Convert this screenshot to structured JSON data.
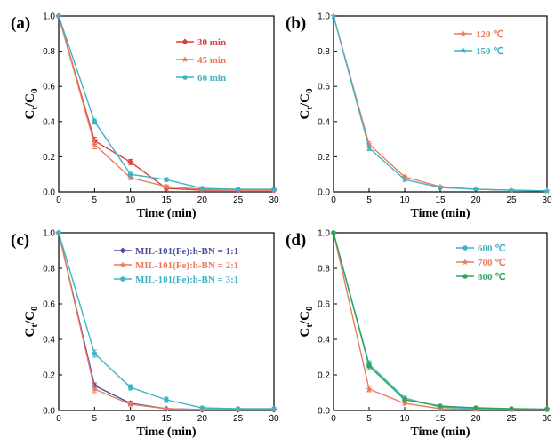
{
  "chart_data": [
    {
      "type": "line",
      "panel": "(a)",
      "xlabel": "Time (min)",
      "ylabel": "Ct/C0",
      "xlim": [
        0,
        30
      ],
      "ylim": [
        0,
        1.0
      ],
      "x": [
        0,
        5,
        10,
        15,
        20,
        25,
        30
      ],
      "xticks": [
        "0",
        "5",
        "10",
        "15",
        "20",
        "25",
        "30"
      ],
      "yticks": [
        "0.0",
        "0.2",
        "0.4",
        "0.6",
        "0.8",
        "1.0"
      ],
      "legend_position": "top-right",
      "series": [
        {
          "name": "30 min",
          "color": "#d9413a",
          "marker": "diamond",
          "values": [
            1.0,
            0.29,
            0.17,
            0.02,
            0.01,
            0.01,
            0.01
          ],
          "errors": [
            0,
            0.02,
            0.015,
            0.01,
            0.005,
            0.005,
            0.005
          ]
        },
        {
          "name": "45 min",
          "color": "#ec7a5c",
          "marker": "star",
          "values": [
            1.0,
            0.27,
            0.08,
            0.03,
            0.015,
            0.01,
            0.01
          ],
          "errors": [
            0,
            0.025,
            0.01,
            0.01,
            0.005,
            0.005,
            0.005
          ]
        },
        {
          "name": "60 min",
          "color": "#3fb3c4",
          "marker": "circle",
          "values": [
            1.0,
            0.4,
            0.1,
            0.07,
            0.02,
            0.015,
            0.015
          ],
          "errors": [
            0,
            0.015,
            0.01,
            0.01,
            0.005,
            0.005,
            0.005
          ]
        }
      ]
    },
    {
      "type": "line",
      "panel": "(b)",
      "xlabel": "Time (min)",
      "ylabel": "Ct/C0",
      "xlim": [
        0,
        30
      ],
      "ylim": [
        0,
        1.0
      ],
      "x": [
        0,
        5,
        10,
        15,
        20,
        25,
        30
      ],
      "xticks": [
        "0",
        "5",
        "10",
        "15",
        "20",
        "25",
        "30"
      ],
      "yticks": [
        "0.0",
        "0.2",
        "0.4",
        "0.6",
        "0.8",
        "1.0"
      ],
      "legend_position": "top-right",
      "series": [
        {
          "name": "120 ℃",
          "color": "#ec7a5c",
          "marker": "star",
          "values": [
            1.0,
            0.27,
            0.085,
            0.03,
            0.015,
            0.01,
            0.005
          ],
          "errors": [
            0,
            0.015,
            0.01,
            0.005,
            0.005,
            0.005,
            0.005
          ]
        },
        {
          "name": "150 ℃",
          "color": "#3fb3c4",
          "marker": "star",
          "values": [
            1.0,
            0.25,
            0.07,
            0.025,
            0.015,
            0.01,
            0.005
          ],
          "errors": [
            0,
            0.015,
            0.01,
            0.005,
            0.005,
            0.005,
            0.005
          ]
        }
      ]
    },
    {
      "type": "line",
      "panel": "(c)",
      "xlabel": "Time (min)",
      "ylabel": "Ct/C0",
      "xlim": [
        0,
        30
      ],
      "ylim": [
        0,
        1.0
      ],
      "x": [
        0,
        5,
        10,
        15,
        20,
        25,
        30
      ],
      "xticks": [
        "0",
        "5",
        "10",
        "15",
        "20",
        "25",
        "30"
      ],
      "yticks": [
        "0.0",
        "0.2",
        "0.4",
        "0.6",
        "0.8",
        "1.0"
      ],
      "legend_position": "top-right",
      "series": [
        {
          "name": "MIL-101(Fe):h-BN = 1:1",
          "color": "#4b4fa0",
          "marker": "diamond",
          "values": [
            1.0,
            0.14,
            0.04,
            0.01,
            0.005,
            0.005,
            0.005
          ],
          "errors": [
            0,
            0.015,
            0.01,
            0.005,
            0.005,
            0.005,
            0.005
          ]
        },
        {
          "name": "MIL-101(Fe):h-BN = 2:1",
          "color": "#ec7a5c",
          "marker": "star",
          "values": [
            1.0,
            0.12,
            0.035,
            0.01,
            0.005,
            0.005,
            0.005
          ],
          "errors": [
            0,
            0.02,
            0.01,
            0.005,
            0.005,
            0.005,
            0.005
          ]
        },
        {
          "name": "MIL-101(Fe):h-BN = 3:1",
          "color": "#3fb3c4",
          "marker": "circle",
          "values": [
            1.0,
            0.32,
            0.13,
            0.06,
            0.015,
            0.01,
            0.01
          ],
          "errors": [
            0,
            0.02,
            0.015,
            0.015,
            0.005,
            0.005,
            0.005
          ]
        }
      ]
    },
    {
      "type": "line",
      "panel": "(d)",
      "xlabel": "Time (min)",
      "ylabel": "Ct/C0",
      "xlim": [
        0,
        30
      ],
      "ylim": [
        0,
        1.0
      ],
      "x": [
        0,
        5,
        10,
        15,
        20,
        25,
        30
      ],
      "xticks": [
        "0",
        "5",
        "10",
        "15",
        "20",
        "25",
        "30"
      ],
      "yticks": [
        "0.0",
        "0.2",
        "0.4",
        "0.6",
        "0.8",
        "1.0"
      ],
      "legend_position": "top-right",
      "series": [
        {
          "name": "600 ℃",
          "color": "#3fb3c4",
          "marker": "circle",
          "values": [
            1.0,
            0.26,
            0.07,
            0.02,
            0.01,
            0.008,
            0.005
          ],
          "errors": [
            0,
            0.02,
            0.01,
            0.005,
            0.005,
            0.005,
            0.005
          ]
        },
        {
          "name": "700 ℃",
          "color": "#ec7a5c",
          "marker": "star",
          "values": [
            1.0,
            0.12,
            0.04,
            0.01,
            0.005,
            0.005,
            0.005
          ],
          "errors": [
            0,
            0.015,
            0.01,
            0.005,
            0.005,
            0.005,
            0.005
          ]
        },
        {
          "name": "800 ℃",
          "color": "#2ea55b",
          "marker": "circle",
          "values": [
            1.0,
            0.25,
            0.06,
            0.025,
            0.015,
            0.01,
            0.008
          ],
          "errors": [
            0,
            0.02,
            0.01,
            0.005,
            0.005,
            0.005,
            0.005
          ]
        }
      ]
    }
  ]
}
